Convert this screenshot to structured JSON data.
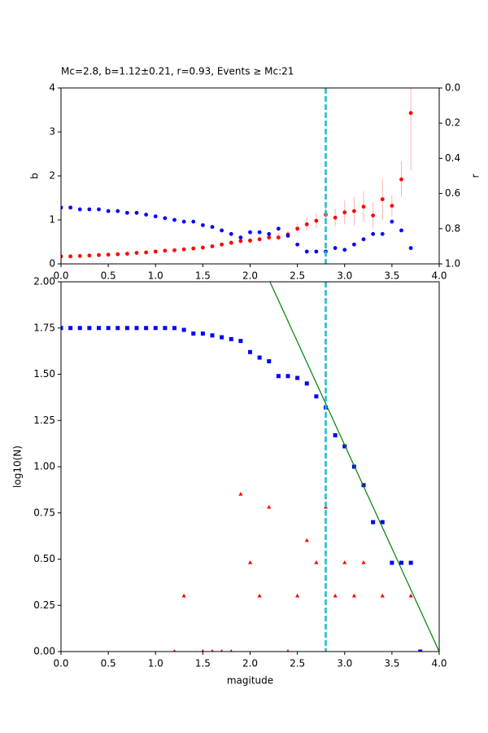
{
  "chart_data": [
    {
      "type": "scatter",
      "title": "Mc=2.8, b=1.12±0.21, r=0.93, Events ≥ Mc:21",
      "ylabel": "b",
      "y2label": "r",
      "x": [
        0.0,
        0.1,
        0.2,
        0.3,
        0.4,
        0.5,
        0.6,
        0.7,
        0.8,
        0.9,
        1.0,
        1.1,
        1.2,
        1.3,
        1.4,
        1.5,
        1.6,
        1.7,
        1.8,
        1.9,
        2.0,
        2.1,
        2.2,
        2.3,
        2.4,
        2.5,
        2.6,
        2.7,
        2.8,
        2.9,
        3.0,
        3.1,
        3.2,
        3.3,
        3.4,
        3.5,
        3.6,
        3.7
      ],
      "series": [
        {
          "color": "#ff0000",
          "marker": "circle",
          "axis": "y",
          "values": [
            0.17,
            0.17,
            0.18,
            0.19,
            0.2,
            0.21,
            0.22,
            0.23,
            0.25,
            0.26,
            0.28,
            0.3,
            0.31,
            0.33,
            0.35,
            0.37,
            0.4,
            0.44,
            0.48,
            0.52,
            0.53,
            0.56,
            0.6,
            0.6,
            0.67,
            0.8,
            0.9,
            0.98,
            1.12,
            1.05,
            1.17,
            1.2,
            1.3,
            1.1,
            1.47,
            1.32,
            1.92,
            3.43
          ],
          "errors": [
            0.02,
            0.02,
            0.02,
            0.02,
            0.02,
            0.02,
            0.02,
            0.02,
            0.02,
            0.02,
            0.03,
            0.03,
            0.03,
            0.03,
            0.03,
            0.04,
            0.04,
            0.04,
            0.05,
            0.06,
            0.06,
            0.06,
            0.07,
            0.07,
            0.08,
            0.12,
            0.15,
            0.17,
            0.21,
            0.2,
            0.27,
            0.33,
            0.35,
            0.3,
            0.47,
            0.25,
            0.4,
            1.3
          ],
          "error_color": "#ffb0b0"
        },
        {
          "color": "#0000ff",
          "marker": "circle",
          "axis": "y2",
          "values": [
            0.68,
            0.68,
            0.69,
            0.69,
            0.69,
            0.7,
            0.7,
            0.71,
            0.71,
            0.72,
            0.73,
            0.74,
            0.75,
            0.76,
            0.76,
            0.78,
            0.79,
            0.81,
            0.83,
            0.85,
            0.82,
            0.82,
            0.83,
            0.8,
            0.84,
            0.89,
            0.93,
            0.93,
            0.93,
            0.91,
            0.92,
            0.89,
            0.86,
            0.83,
            0.83,
            0.76,
            0.81,
            0.91
          ]
        }
      ],
      "xlim": [
        0,
        4
      ],
      "xticks": [
        {
          "value": 0,
          "label": "0.0"
        },
        {
          "value": 0.5,
          "label": "0.5"
        },
        {
          "value": 1,
          "label": "1.0"
        },
        {
          "value": 1.5,
          "label": "1.5"
        },
        {
          "value": 2,
          "label": "2.0"
        },
        {
          "value": 2.5,
          "label": "2.5"
        },
        {
          "value": 3,
          "label": "3.0"
        },
        {
          "value": 3.5,
          "label": "3.5"
        },
        {
          "value": 4,
          "label": "4.0"
        }
      ],
      "ylim": [
        0,
        4
      ],
      "yticks": [
        0,
        1,
        2,
        3,
        4
      ],
      "y2lim": [
        1,
        0
      ],
      "y2ticks": [
        {
          "value": 0,
          "label": "0.0"
        },
        {
          "value": 0.2,
          "label": "0.2"
        },
        {
          "value": 0.4,
          "label": "0.4"
        },
        {
          "value": 0.6,
          "label": "0.6"
        },
        {
          "value": 0.8,
          "label": "0.8"
        },
        {
          "value": 1,
          "label": "1.0"
        }
      ],
      "vline": 2.8,
      "vline_color": "#17becf"
    },
    {
      "type": "scatter",
      "xlabel": "magitude",
      "ylabel": "log10(N)",
      "series": [
        {
          "color": "#0000ff",
          "marker": "square",
          "x": [
            0.0,
            0.1,
            0.2,
            0.3,
            0.4,
            0.5,
            0.6,
            0.7,
            0.8,
            0.9,
            1.0,
            1.1,
            1.2,
            1.3,
            1.4,
            1.5,
            1.6,
            1.7,
            1.8,
            1.9,
            2.0,
            2.1,
            2.2,
            2.3,
            2.4,
            2.5,
            2.6,
            2.7,
            2.8,
            2.9,
            3.0,
            3.1,
            3.2,
            3.3,
            3.4,
            3.5,
            3.6,
            3.7,
            3.8
          ],
          "values": [
            1.75,
            1.75,
            1.75,
            1.75,
            1.75,
            1.75,
            1.75,
            1.75,
            1.75,
            1.75,
            1.75,
            1.75,
            1.75,
            1.74,
            1.72,
            1.72,
            1.71,
            1.7,
            1.69,
            1.68,
            1.62,
            1.59,
            1.57,
            1.49,
            1.49,
            1.48,
            1.45,
            1.38,
            1.32,
            1.17,
            1.11,
            1.0,
            0.9,
            0.7,
            0.7,
            0.48,
            0.48,
            0.48,
            0.0
          ]
        },
        {
          "color": "#ff0000",
          "marker": "triangle",
          "x": [
            1.2,
            1.3,
            1.5,
            1.6,
            1.7,
            1.8,
            1.9,
            2.0,
            2.1,
            2.2,
            2.4,
            2.5,
            2.6,
            2.7,
            2.8,
            2.9,
            3.0,
            3.1,
            3.2,
            3.4,
            3.7
          ],
          "values": [
            0,
            0.3,
            0,
            0,
            0,
            0,
            0.85,
            0.48,
            0.3,
            0.78,
            0,
            0.3,
            0.6,
            0.48,
            0.78,
            0.3,
            0.48,
            0.3,
            0.48,
            0.3,
            0.3
          ]
        },
        {
          "color": "#008000",
          "marker": "line",
          "x": [
            2.21,
            4.0
          ],
          "values": [
            2.0,
            0.0
          ]
        }
      ],
      "xlim": [
        0,
        4
      ],
      "xticks": [
        {
          "value": 0,
          "label": "0.0"
        },
        {
          "value": 0.5,
          "label": "0.5"
        },
        {
          "value": 1,
          "label": "1.0"
        },
        {
          "value": 1.5,
          "label": "1.5"
        },
        {
          "value": 2,
          "label": "2.0"
        },
        {
          "value": 2.5,
          "label": "2.5"
        },
        {
          "value": 3,
          "label": "3.0"
        },
        {
          "value": 3.5,
          "label": "3.5"
        },
        {
          "value": 4,
          "label": "4.0"
        }
      ],
      "ylim": [
        0,
        2
      ],
      "yticks": [
        {
          "value": 0,
          "label": "0.00"
        },
        {
          "value": 0.25,
          "label": "0.25"
        },
        {
          "value": 0.5,
          "label": "0.50"
        },
        {
          "value": 0.75,
          "label": "0.75"
        },
        {
          "value": 1,
          "label": "1.00"
        },
        {
          "value": 1.25,
          "label": "1.25"
        },
        {
          "value": 1.5,
          "label": "1.50"
        },
        {
          "value": 1.75,
          "label": "1.75"
        },
        {
          "value": 2,
          "label": "2.00"
        }
      ],
      "vline": 2.8,
      "vline_color": "#17becf"
    }
  ]
}
